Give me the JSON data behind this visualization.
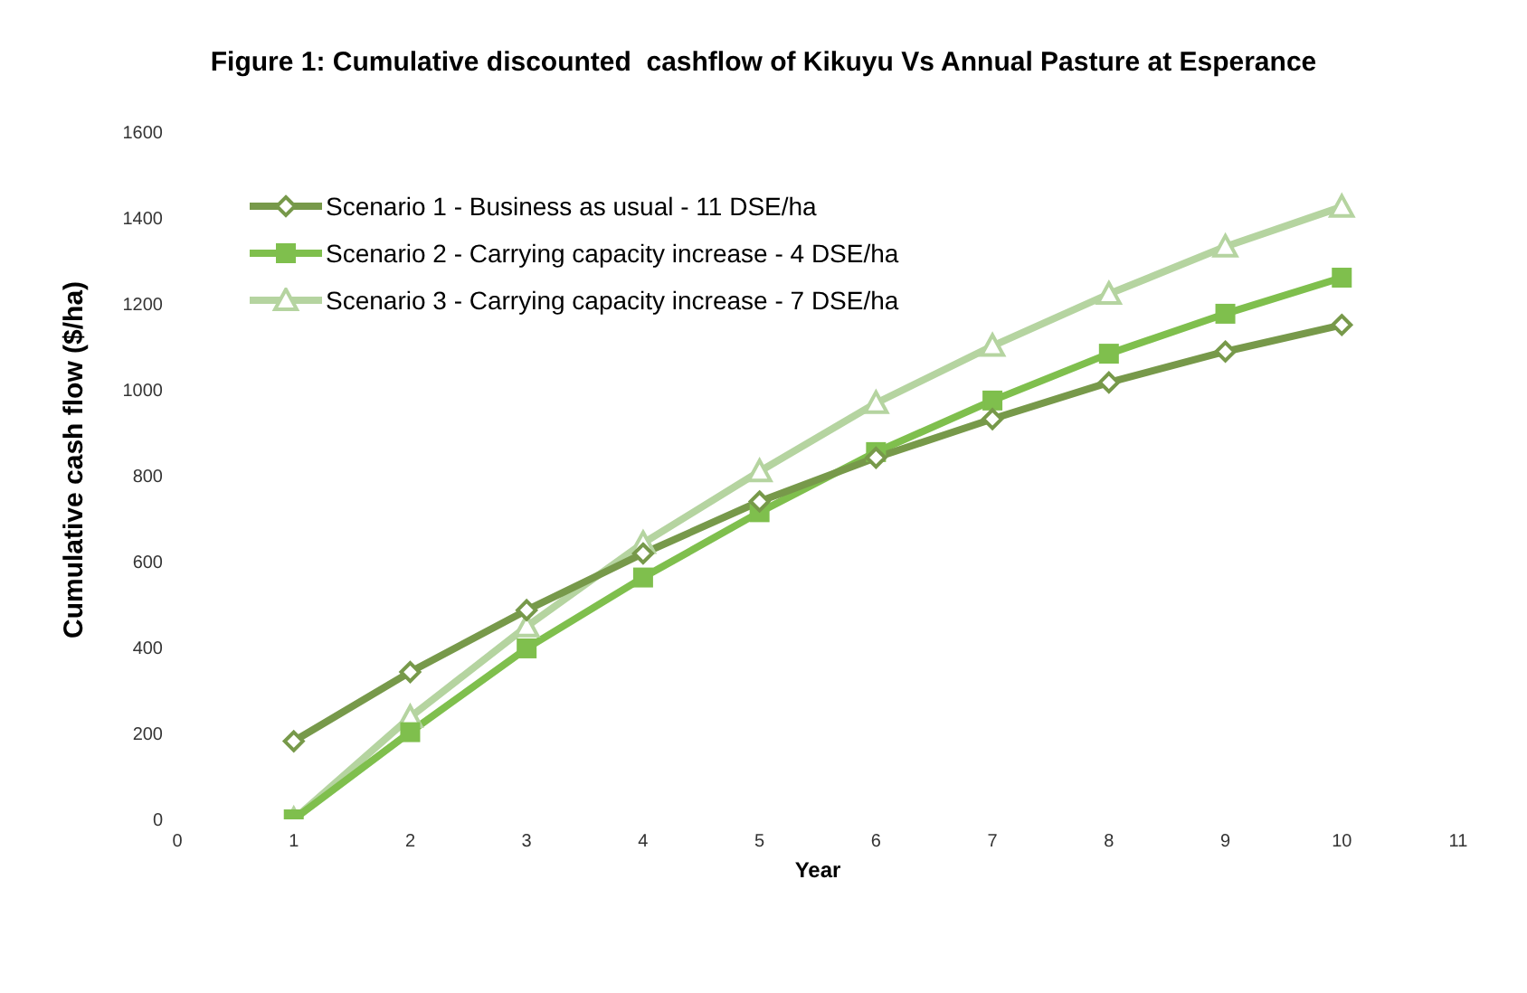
{
  "chart_data": {
    "type": "line",
    "title": "Figure 1: Cumulative discounted  cashflow of Kikuyu Vs Annual Pasture at Esperance",
    "xlabel": "Year",
    "ylabel": "Cumulative  cash flow ($/ha)",
    "x": [
      1,
      2,
      3,
      4,
      5,
      6,
      7,
      8,
      9,
      10
    ],
    "series": [
      {
        "name": "Scenario 1 - Business as usual - 11 DSE/ha",
        "color": "#77994a",
        "marker": "diamond",
        "values": [
          182,
          343,
          487,
          619,
          740,
          842,
          932,
          1017,
          1089,
          1151
        ]
      },
      {
        "name": "Scenario 2 - Carrying capacity increase - 4 DSE/ha",
        "color": "#7fbf4d",
        "marker": "square",
        "values": [
          0,
          203,
          398,
          563,
          715,
          855,
          975,
          1084,
          1177,
          1261
        ]
      },
      {
        "name": "Scenario 3 - Carrying capacity increase - 7 DSE/ha",
        "color": "#b5d4a0",
        "marker": "triangle",
        "values": [
          0,
          238,
          449,
          643,
          810,
          969,
          1102,
          1223,
          1333,
          1426
        ]
      }
    ],
    "xlim": [
      0,
      11
    ],
    "xticks": [
      0,
      1,
      2,
      3,
      4,
      5,
      6,
      7,
      8,
      9,
      10,
      11
    ],
    "ylim": [
      0,
      1600
    ],
    "yticks": [
      0,
      200,
      400,
      600,
      800,
      1000,
      1200,
      1400,
      1600
    ],
    "grid": false,
    "legend": "top left",
    "line_style": "solid"
  }
}
